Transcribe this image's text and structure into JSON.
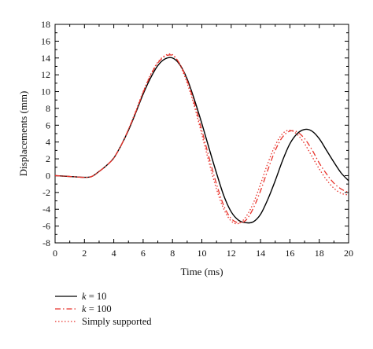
{
  "chart_data": {
    "type": "line",
    "title": "",
    "xlabel": "Time (ms)",
    "ylabel": "Displacements (mm)",
    "xlim": [
      0,
      20
    ],
    "ylim": [
      -8,
      18
    ],
    "x_ticks": [
      0,
      2,
      4,
      6,
      8,
      10,
      12,
      14,
      16,
      18,
      20
    ],
    "y_ticks": [
      -8,
      -6,
      -4,
      -2,
      0,
      2,
      4,
      6,
      8,
      10,
      12,
      14,
      16,
      18
    ],
    "grid": false,
    "legend_position": "below-left",
    "series": [
      {
        "name": "k = 10",
        "legend_italic": "k",
        "legend_rest": " = 10",
        "color": "#000000",
        "style": "solid",
        "x": [
          0,
          1,
          2,
          2.5,
          3,
          3.5,
          4,
          4.5,
          5,
          5.5,
          6,
          6.5,
          7,
          7.5,
          8,
          8.5,
          9,
          9.5,
          10,
          10.5,
          11,
          11.5,
          12,
          12.5,
          13,
          13.5,
          14,
          14.5,
          15,
          15.5,
          16,
          16.5,
          17,
          17.5,
          18,
          18.5,
          19,
          19.5,
          20
        ],
        "y": [
          0,
          -0.1,
          -0.2,
          -0.1,
          0.5,
          1.2,
          2.1,
          3.6,
          5.4,
          7.5,
          9.7,
          11.6,
          13.1,
          13.9,
          14.0,
          13.2,
          11.5,
          9.0,
          6.2,
          3.2,
          0.3,
          -2.4,
          -4.3,
          -5.3,
          -5.6,
          -5.5,
          -4.6,
          -2.8,
          -0.6,
          1.8,
          3.8,
          5.0,
          5.5,
          5.3,
          4.4,
          3.0,
          1.6,
          0.3,
          -0.6
        ]
      },
      {
        "name": "k = 100",
        "legend_italic": "k",
        "legend_rest": " = 100",
        "color": "#e8322a",
        "style": "dashdot",
        "x": [
          0,
          1,
          2,
          2.5,
          3,
          3.5,
          4,
          4.5,
          5,
          5.5,
          6,
          6.5,
          7,
          7.5,
          8,
          8.5,
          9,
          9.5,
          10,
          10.5,
          11,
          11.5,
          12,
          12.5,
          13,
          13.5,
          14,
          14.5,
          15,
          15.5,
          16,
          16.5,
          17,
          17.5,
          18,
          18.5,
          19,
          19.5,
          20
        ],
        "y": [
          0,
          -0.1,
          -0.2,
          -0.1,
          0.5,
          1.2,
          2.1,
          3.6,
          5.5,
          7.6,
          9.9,
          11.9,
          13.4,
          14.2,
          14.3,
          13.3,
          11.3,
          8.6,
          5.4,
          2.1,
          -1.0,
          -3.6,
          -5.1,
          -5.6,
          -5.3,
          -3.9,
          -1.8,
          0.7,
          3.0,
          4.6,
          5.3,
          5.2,
          4.4,
          3.1,
          1.5,
          0.2,
          -0.9,
          -1.6,
          -2.0
        ]
      },
      {
        "name": "Simply supported",
        "legend_italic": "",
        "legend_rest": "Simply supported",
        "color": "#e8322a",
        "style": "dotted",
        "x": [
          0,
          1,
          2,
          2.5,
          3,
          3.5,
          4,
          4.5,
          5,
          5.5,
          6,
          6.5,
          7,
          7.5,
          8,
          8.5,
          9,
          9.5,
          10,
          10.5,
          11,
          11.5,
          12,
          12.5,
          13,
          13.5,
          14,
          14.5,
          15,
          15.5,
          16,
          16.5,
          17,
          17.5,
          18,
          18.5,
          19,
          19.5,
          20
        ],
        "y": [
          0,
          -0.1,
          -0.2,
          -0.1,
          0.5,
          1.2,
          2.1,
          3.6,
          5.5,
          7.7,
          10.0,
          12.0,
          13.5,
          14.3,
          14.4,
          13.2,
          11.0,
          8.2,
          4.9,
          1.5,
          -1.6,
          -4.0,
          -5.4,
          -5.7,
          -4.9,
          -3.3,
          -1.0,
          1.5,
          3.6,
          5.0,
          5.4,
          4.9,
          3.8,
          2.3,
          0.8,
          -0.5,
          -1.5,
          -2.1,
          -2.3
        ]
      }
    ]
  }
}
